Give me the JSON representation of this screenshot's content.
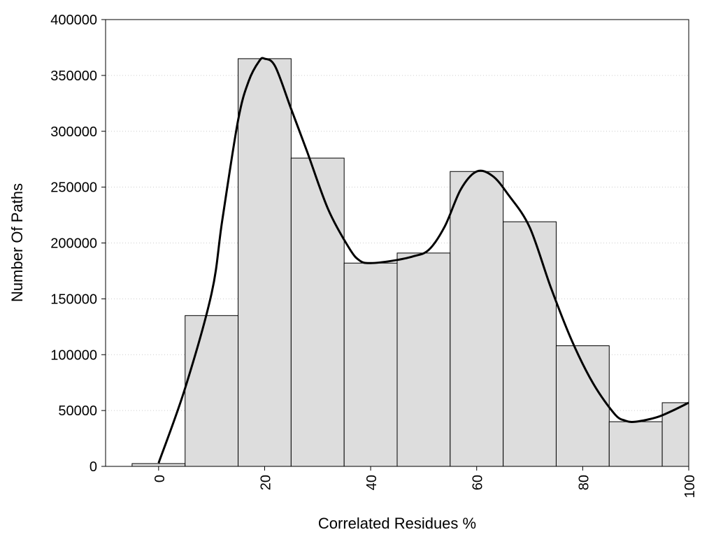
{
  "chart_data": {
    "type": "bar",
    "xlabel": "Correlated Residues %",
    "ylabel": "Number Of Paths",
    "xlim": [
      -10,
      100
    ],
    "ylim": [
      0,
      400000
    ],
    "x_ticks": [
      0,
      20,
      40,
      60,
      80,
      100
    ],
    "y_ticks": [
      0,
      50000,
      100000,
      150000,
      200000,
      250000,
      300000,
      350000,
      400000
    ],
    "bin_width": 10,
    "bars": [
      {
        "x": 0,
        "value": 2500
      },
      {
        "x": 10,
        "value": 135000
      },
      {
        "x": 20,
        "value": 365000
      },
      {
        "x": 30,
        "value": 276000
      },
      {
        "x": 40,
        "value": 182000
      },
      {
        "x": 50,
        "value": 191000
      },
      {
        "x": 60,
        "value": 264000
      },
      {
        "x": 70,
        "value": 219000
      },
      {
        "x": 80,
        "value": 108000
      },
      {
        "x": 90,
        "value": 40000
      },
      {
        "x": 100,
        "value": 57000
      }
    ],
    "curve": {
      "x": [
        0,
        5,
        10,
        12,
        15,
        17,
        19,
        20,
        22,
        25,
        28,
        32,
        36,
        38,
        40,
        44,
        48,
        51,
        54,
        57,
        60,
        63,
        66,
        70,
        74,
        78,
        82,
        86,
        88,
        90,
        94,
        97,
        100
      ],
      "y": [
        3000,
        70000,
        155000,
        220000,
        310000,
        345000,
        363000,
        365000,
        358000,
        320000,
        282000,
        230000,
        195000,
        184000,
        182000,
        184000,
        188000,
        194000,
        215000,
        248000,
        264000,
        260000,
        243000,
        214000,
        160000,
        112000,
        74000,
        47000,
        41000,
        40000,
        44000,
        50000,
        57000
      ]
    },
    "grid": {
      "y": true,
      "x": false,
      "style": "dotted"
    },
    "colors": {
      "bar_fill": "#dddddd",
      "bar_stroke": "#000000",
      "curve": "#000000",
      "grid": "#cccccc"
    }
  }
}
